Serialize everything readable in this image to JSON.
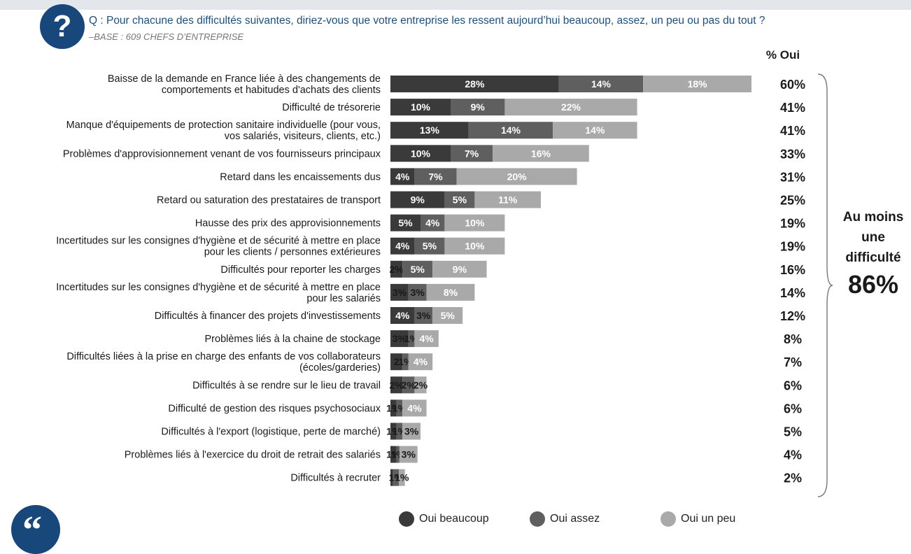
{
  "header": {
    "question": "Q : Pour chacune des difficultés suivantes, diriez-vous que votre entreprise les ressent aujourd’hui beaucoup, assez, un peu ou pas du tout ?",
    "base": "–BASE : 609 CHEFS D’ENTREPRISE",
    "question_icon": "?",
    "oui_header": "% Oui"
  },
  "summary": {
    "line1": "Au moins",
    "line2": "une",
    "line3": "difficulté",
    "value": "86%"
  },
  "legend": [
    {
      "label": "Oui beaucoup",
      "color": "#3a3a3a"
    },
    {
      "label": "Oui assez",
      "color": "#5f5f5f"
    },
    {
      "label": "Oui un peu",
      "color": "#a9a9a9"
    }
  ],
  "colors": {
    "beaucoup": "#3a3a3a",
    "assez": "#5f5f5f",
    "peu": "#a9a9a9",
    "brand": "#17477b"
  },
  "chart_data": {
    "type": "bar",
    "orientation": "horizontal",
    "stacked": true,
    "xlim": [
      0,
      60
    ],
    "grid": false,
    "legend_position": "bottom",
    "categories": [
      "Baisse de la demande en France liée à des changements de\ncomportements et habitudes d'achats des clients",
      "Difficulté de trésorerie",
      "Manque d'équipements de protection sanitaire individuelle (pour vous,\nvos salariés, visiteurs, clients, etc.)",
      "Problèmes d'approvisionnement venant de vos fournisseurs principaux",
      "Retard dans les encaissements dus",
      "Retard ou saturation des prestataires de transport",
      "Hausse des prix des approvisionnements",
      "Incertitudes sur les consignes d'hygiène et de sécurité à mettre en place\npour les clients / personnes extérieures",
      "Difficultés pour reporter les charges",
      "Incertitudes sur les consignes d'hygiène et de sécurité à mettre en place\npour les salariés",
      "Difficultés à financer des projets d'investissements",
      "Problèmes liés à la chaine de stockage",
      "Difficultés liées à la prise en charge des enfants de vos collaborateurs\n(écoles/garderies)",
      "Difficultés à se rendre sur le lieu de travail",
      "Difficulté de gestion des risques psychosociaux",
      "Difficultés à l'export (logistique, perte de marché)",
      "Problèmes liés à l'exercice du droit de retrait des salariés",
      "Difficultés à recruter"
    ],
    "series": [
      {
        "name": "Oui beaucoup",
        "values": [
          28,
          10,
          13,
          10,
          4,
          9,
          5,
          4,
          2,
          3,
          4,
          3,
          2,
          2,
          1,
          1,
          1,
          0.4
        ]
      },
      {
        "name": "Oui assez",
        "values": [
          14,
          9,
          14,
          7,
          7,
          5,
          4,
          5,
          5,
          3,
          3,
          1,
          1,
          2,
          1,
          1,
          0.5,
          1
        ]
      },
      {
        "name": "Oui un peu",
        "values": [
          18,
          22,
          14,
          16,
          20,
          11,
          10,
          10,
          9,
          8,
          5,
          4,
          4,
          2,
          4,
          3,
          3,
          1
        ]
      }
    ],
    "data_labels": [
      [
        "28%",
        "14%",
        "18%"
      ],
      [
        "10%",
        "9%",
        "22%"
      ],
      [
        "13%",
        "14%",
        "14%"
      ],
      [
        "10%",
        "7%",
        "16%"
      ],
      [
        "4%",
        "7%",
        "20%"
      ],
      [
        "9%",
        "5%",
        "11%"
      ],
      [
        "5%",
        "4%",
        "10%"
      ],
      [
        "4%",
        "5%",
        "10%"
      ],
      [
        "2%",
        "5%",
        "9%"
      ],
      [
        "3%",
        "3%",
        "8%"
      ],
      [
        "4%",
        "3%",
        "5%"
      ],
      [
        "3%",
        "1%",
        "4%"
      ],
      [
        "2",
        "1%",
        "4%"
      ],
      [
        "2%",
        "2%",
        "2%"
      ],
      [
        "1%",
        "1%",
        "4%"
      ],
      [
        "1%",
        "1%",
        "3%"
      ],
      [
        "1%",
        "1%",
        "3%"
      ],
      [
        "",
        "1%",
        "1%"
      ]
    ],
    "totals": [
      "60%",
      "41%",
      "41%",
      "33%",
      "31%",
      "25%",
      "19%",
      "19%",
      "16%",
      "14%",
      "12%",
      "8%",
      "7%",
      "6%",
      "6%",
      "5%",
      "4%",
      "2%"
    ]
  }
}
